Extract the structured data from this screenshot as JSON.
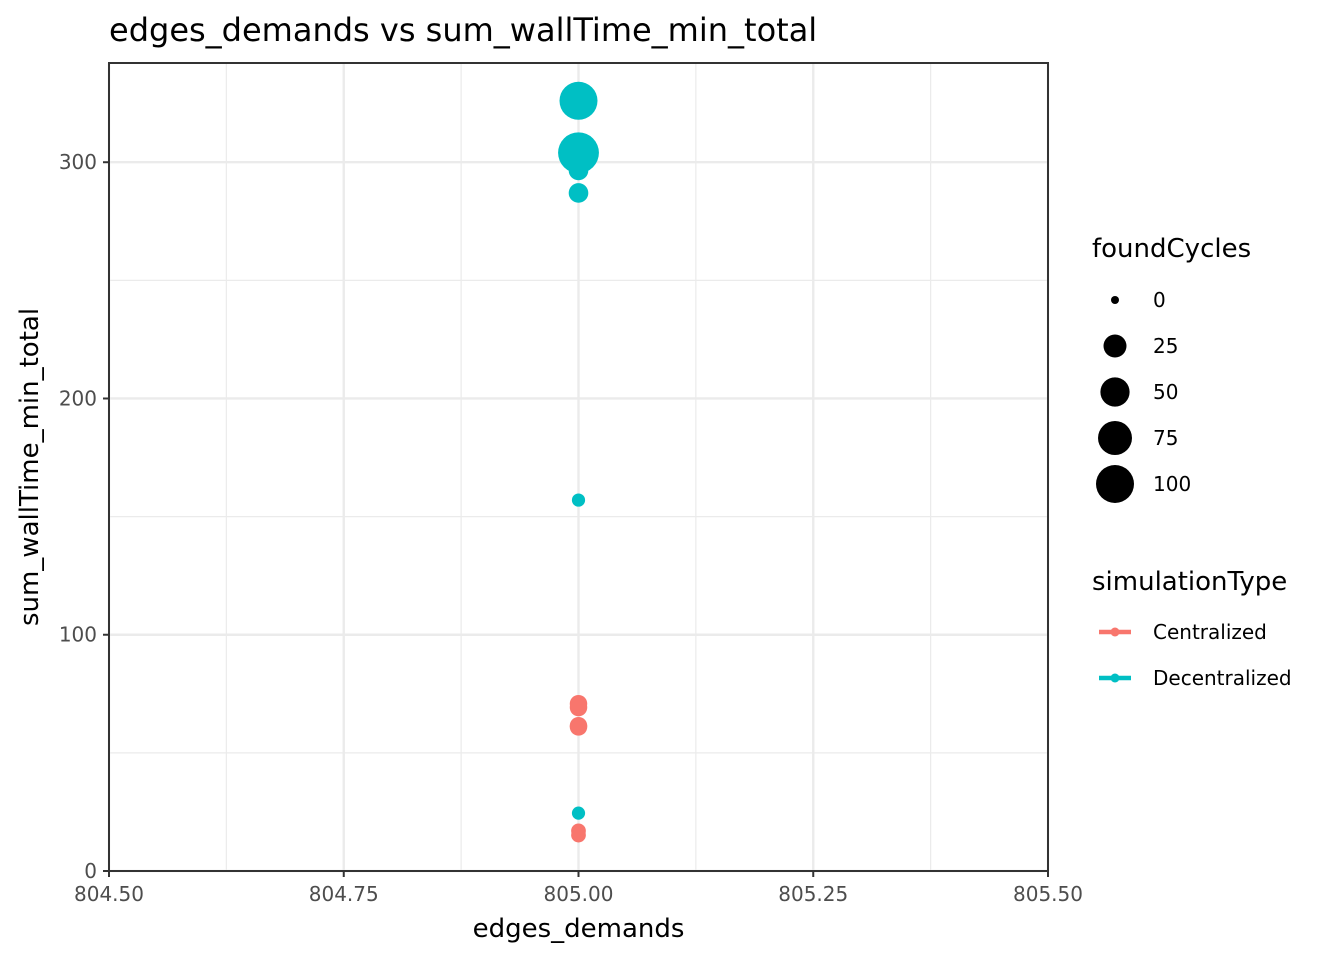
{
  "chart_data": {
    "type": "scatter",
    "title": "edges_demands  vs  sum_wallTime_min_total",
    "xlabel": "edges_demands",
    "ylabel": "sum_wallTime_min_total",
    "xlim": [
      804.5,
      805.5
    ],
    "ylim": [
      0,
      342
    ],
    "x_ticks": [
      "804.50",
      "804.75",
      "805.00",
      "805.25",
      "805.50"
    ],
    "x_tick_values": [
      804.5,
      804.75,
      805.0,
      805.25,
      805.5
    ],
    "y_ticks": [
      "0",
      "100",
      "200",
      "300"
    ],
    "y_tick_values": [
      0,
      100,
      200,
      300
    ],
    "y_minor_values": [
      50,
      150,
      250
    ],
    "x_minor_values": [
      804.625,
      804.875,
      805.125,
      805.375
    ],
    "grid": true,
    "legend_position": "right",
    "colors": {
      "Centralized": "#F8766D",
      "Decentralized": "#00BFC4"
    },
    "size_legend": {
      "title": "foundCycles",
      "breaks": [
        0,
        25,
        50,
        75,
        100
      ],
      "labels": [
        "0",
        "25",
        "50",
        "75",
        "100"
      ]
    },
    "color_legend": {
      "title": "simulationType",
      "entries": [
        "Centralized",
        "Decentralized"
      ]
    },
    "series": [
      {
        "name": "Centralized",
        "points": [
          {
            "x": 805.0,
            "y": 70.8,
            "foundCycles": 10
          },
          {
            "x": 805.0,
            "y": 69.2,
            "foundCycles": 10
          },
          {
            "x": 805.0,
            "y": 61.5,
            "foundCycles": 10
          },
          {
            "x": 805.0,
            "y": 61.0,
            "foundCycles": 10
          },
          {
            "x": 805.0,
            "y": 17.0,
            "foundCycles": 5
          },
          {
            "x": 805.0,
            "y": 15.2,
            "foundCycles": 5
          }
        ]
      },
      {
        "name": "Decentralized",
        "points": [
          {
            "x": 805.0,
            "y": 326.0,
            "foundCycles": 100
          },
          {
            "x": 805.0,
            "y": 304.0,
            "foundCycles": 120
          },
          {
            "x": 805.0,
            "y": 296.5,
            "foundCycles": 15
          },
          {
            "x": 805.0,
            "y": 287.0,
            "foundCycles": 15
          },
          {
            "x": 805.0,
            "y": 157.0,
            "foundCycles": 3
          },
          {
            "x": 805.0,
            "y": 24.5,
            "foundCycles": 3
          }
        ]
      }
    ]
  }
}
